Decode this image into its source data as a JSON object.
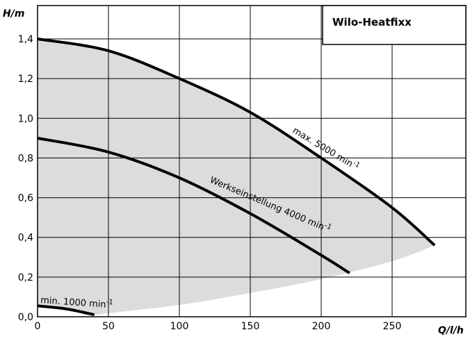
{
  "chart_data": {
    "type": "line",
    "title": "Wilo-Heatfixx",
    "xlabel": "Q/l/h",
    "ylabel": "H/m",
    "xlim": [
      0,
      300
    ],
    "ylim": [
      0,
      1.4
    ],
    "x_ticks": [
      "0",
      "50",
      "100",
      "150",
      "200",
      "250"
    ],
    "y_ticks": [
      "0,0",
      "0,2",
      "0,4",
      "0,6",
      "0,8",
      "1,0",
      "1,2",
      "1,4"
    ],
    "grid": true,
    "colors": {
      "curve": "#000000",
      "area": "#dcdcdc",
      "grid": "#000000"
    },
    "series": [
      {
        "name": "max. 5000 min-1",
        "label_text": "max. 5000 min",
        "label_sup": "-1",
        "x": [
          0,
          50,
          100,
          150,
          200,
          250,
          280
        ],
        "y": [
          1.4,
          1.34,
          1.2,
          1.03,
          0.8,
          0.55,
          0.36
        ]
      },
      {
        "name": "Werkseinstellung 4000 min-1",
        "label_text": "Werkseinstellung 4000 min",
        "label_sup": "-1",
        "x": [
          0,
          50,
          100,
          150,
          200,
          220
        ],
        "y": [
          0.9,
          0.83,
          0.7,
          0.52,
          0.31,
          0.22
        ]
      },
      {
        "name": "min. 1000 min-1",
        "label_text": "min. 1000 min",
        "label_sup": "-1",
        "x": [
          0,
          20,
          40
        ],
        "y": [
          0.055,
          0.04,
          0.01
        ]
      }
    ],
    "area_lower_boundary": {
      "x": [
        40,
        100,
        150,
        200,
        250,
        280
      ],
      "y": [
        0.01,
        0.06,
        0.12,
        0.19,
        0.28,
        0.36
      ]
    }
  }
}
